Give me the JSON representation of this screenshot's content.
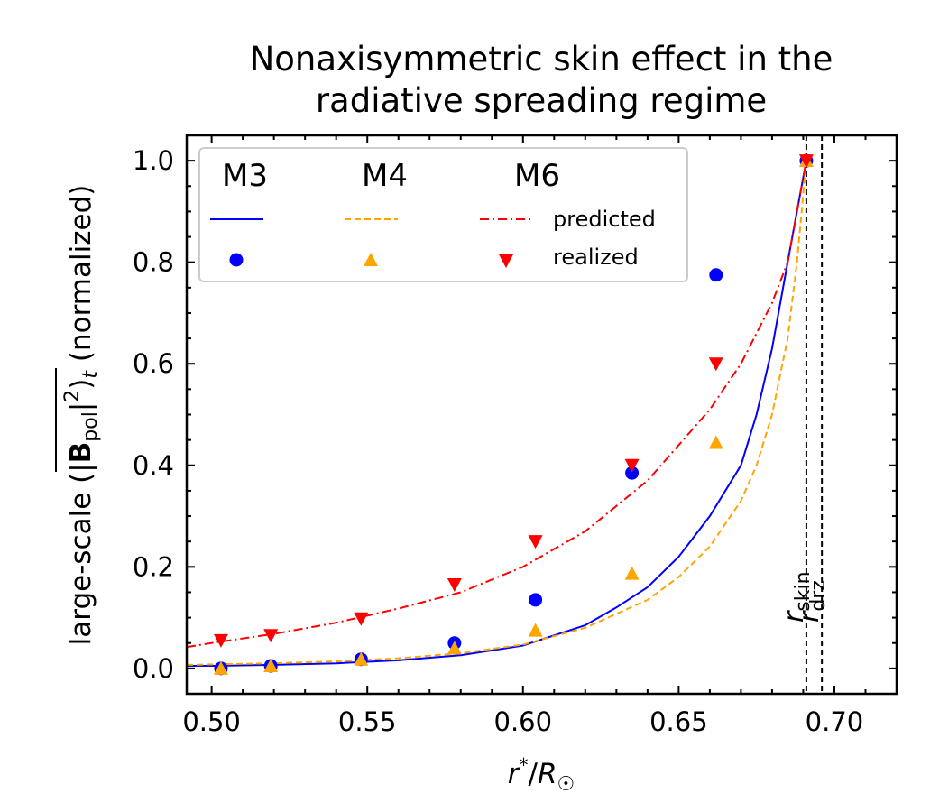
{
  "chart_data": {
    "type": "line",
    "title": "Nonaxisymmetric skin effect in the\nradiative spreading regime",
    "title_lines": [
      "Nonaxisymmetric skin effect in the",
      "radiative spreading regime"
    ],
    "xlabel": "r*/R☉",
    "ylabel": "large-scale (|Bpol|²)t (normalized)",
    "xlim": [
      0.492,
      0.72
    ],
    "ylim": [
      -0.05,
      1.05
    ],
    "xticks": [
      0.5,
      0.55,
      0.6,
      0.65,
      0.7
    ],
    "xtick_labels": [
      "0.50",
      "0.55",
      "0.60",
      "0.65",
      "0.70"
    ],
    "yticks": [
      0.0,
      0.2,
      0.4,
      0.6,
      0.8,
      1.0
    ],
    "ytick_labels": [
      "0.0",
      "0.2",
      "0.4",
      "0.6",
      "0.8",
      "1.0"
    ],
    "grid": false,
    "legend": {
      "placement": "top-left",
      "columns": [
        "M3",
        "M4",
        "M6"
      ],
      "row_labels": [
        "predicted",
        "realized"
      ]
    },
    "vertical_lines": [
      {
        "x": 0.691,
        "label_main": "r",
        "label_sub": "skin"
      },
      {
        "x": 0.696,
        "label_main": "r",
        "label_sub": "drz"
      }
    ],
    "series": [
      {
        "name": "M3",
        "kind": "predicted",
        "color": "#0000ff",
        "dash": "solid",
        "x": [
          0.492,
          0.5,
          0.52,
          0.54,
          0.56,
          0.58,
          0.6,
          0.62,
          0.63,
          0.64,
          0.65,
          0.66,
          0.67,
          0.675,
          0.68,
          0.685,
          0.688,
          0.691
        ],
        "y": [
          0.005,
          0.005,
          0.007,
          0.01,
          0.016,
          0.026,
          0.045,
          0.085,
          0.12,
          0.16,
          0.22,
          0.3,
          0.4,
          0.5,
          0.63,
          0.8,
          0.9,
          1.0
        ]
      },
      {
        "name": "M4",
        "kind": "predicted",
        "color": "#ffa500",
        "dash": "dashed",
        "x": [
          0.492,
          0.5,
          0.52,
          0.54,
          0.56,
          0.58,
          0.6,
          0.62,
          0.64,
          0.65,
          0.66,
          0.67,
          0.675,
          0.68,
          0.685,
          0.688,
          0.691
        ],
        "y": [
          0.007,
          0.008,
          0.01,
          0.014,
          0.02,
          0.03,
          0.047,
          0.08,
          0.135,
          0.18,
          0.24,
          0.33,
          0.4,
          0.5,
          0.65,
          0.8,
          1.0
        ]
      },
      {
        "name": "M6",
        "kind": "predicted",
        "color": "#ff0000",
        "dash": "dashdot",
        "x": [
          0.492,
          0.5,
          0.52,
          0.54,
          0.56,
          0.58,
          0.6,
          0.62,
          0.64,
          0.66,
          0.67,
          0.68,
          0.685,
          0.691
        ],
        "y": [
          0.042,
          0.05,
          0.068,
          0.09,
          0.118,
          0.15,
          0.2,
          0.27,
          0.37,
          0.51,
          0.6,
          0.72,
          0.8,
          1.0
        ]
      },
      {
        "name": "M3",
        "kind": "realized",
        "color": "#0000ff",
        "marker": "circle",
        "x": [
          0.503,
          0.519,
          0.548,
          0.578,
          0.604,
          0.635,
          0.662,
          0.691
        ],
        "y": [
          0.0,
          0.005,
          0.018,
          0.05,
          0.135,
          0.385,
          0.775,
          1.0
        ]
      },
      {
        "name": "M4",
        "kind": "realized",
        "color": "#ffa500",
        "marker": "triangle-up",
        "x": [
          0.503,
          0.519,
          0.548,
          0.578,
          0.604,
          0.635,
          0.662,
          0.691
        ],
        "y": [
          0.0,
          0.005,
          0.018,
          0.04,
          0.075,
          0.187,
          0.445,
          1.0
        ]
      },
      {
        "name": "M6",
        "kind": "realized",
        "color": "#ff0000",
        "marker": "triangle-down",
        "x": [
          0.503,
          0.519,
          0.548,
          0.578,
          0.604,
          0.635,
          0.662,
          0.691
        ],
        "y": [
          0.055,
          0.065,
          0.098,
          0.165,
          0.25,
          0.4,
          0.6,
          1.0
        ]
      }
    ]
  }
}
